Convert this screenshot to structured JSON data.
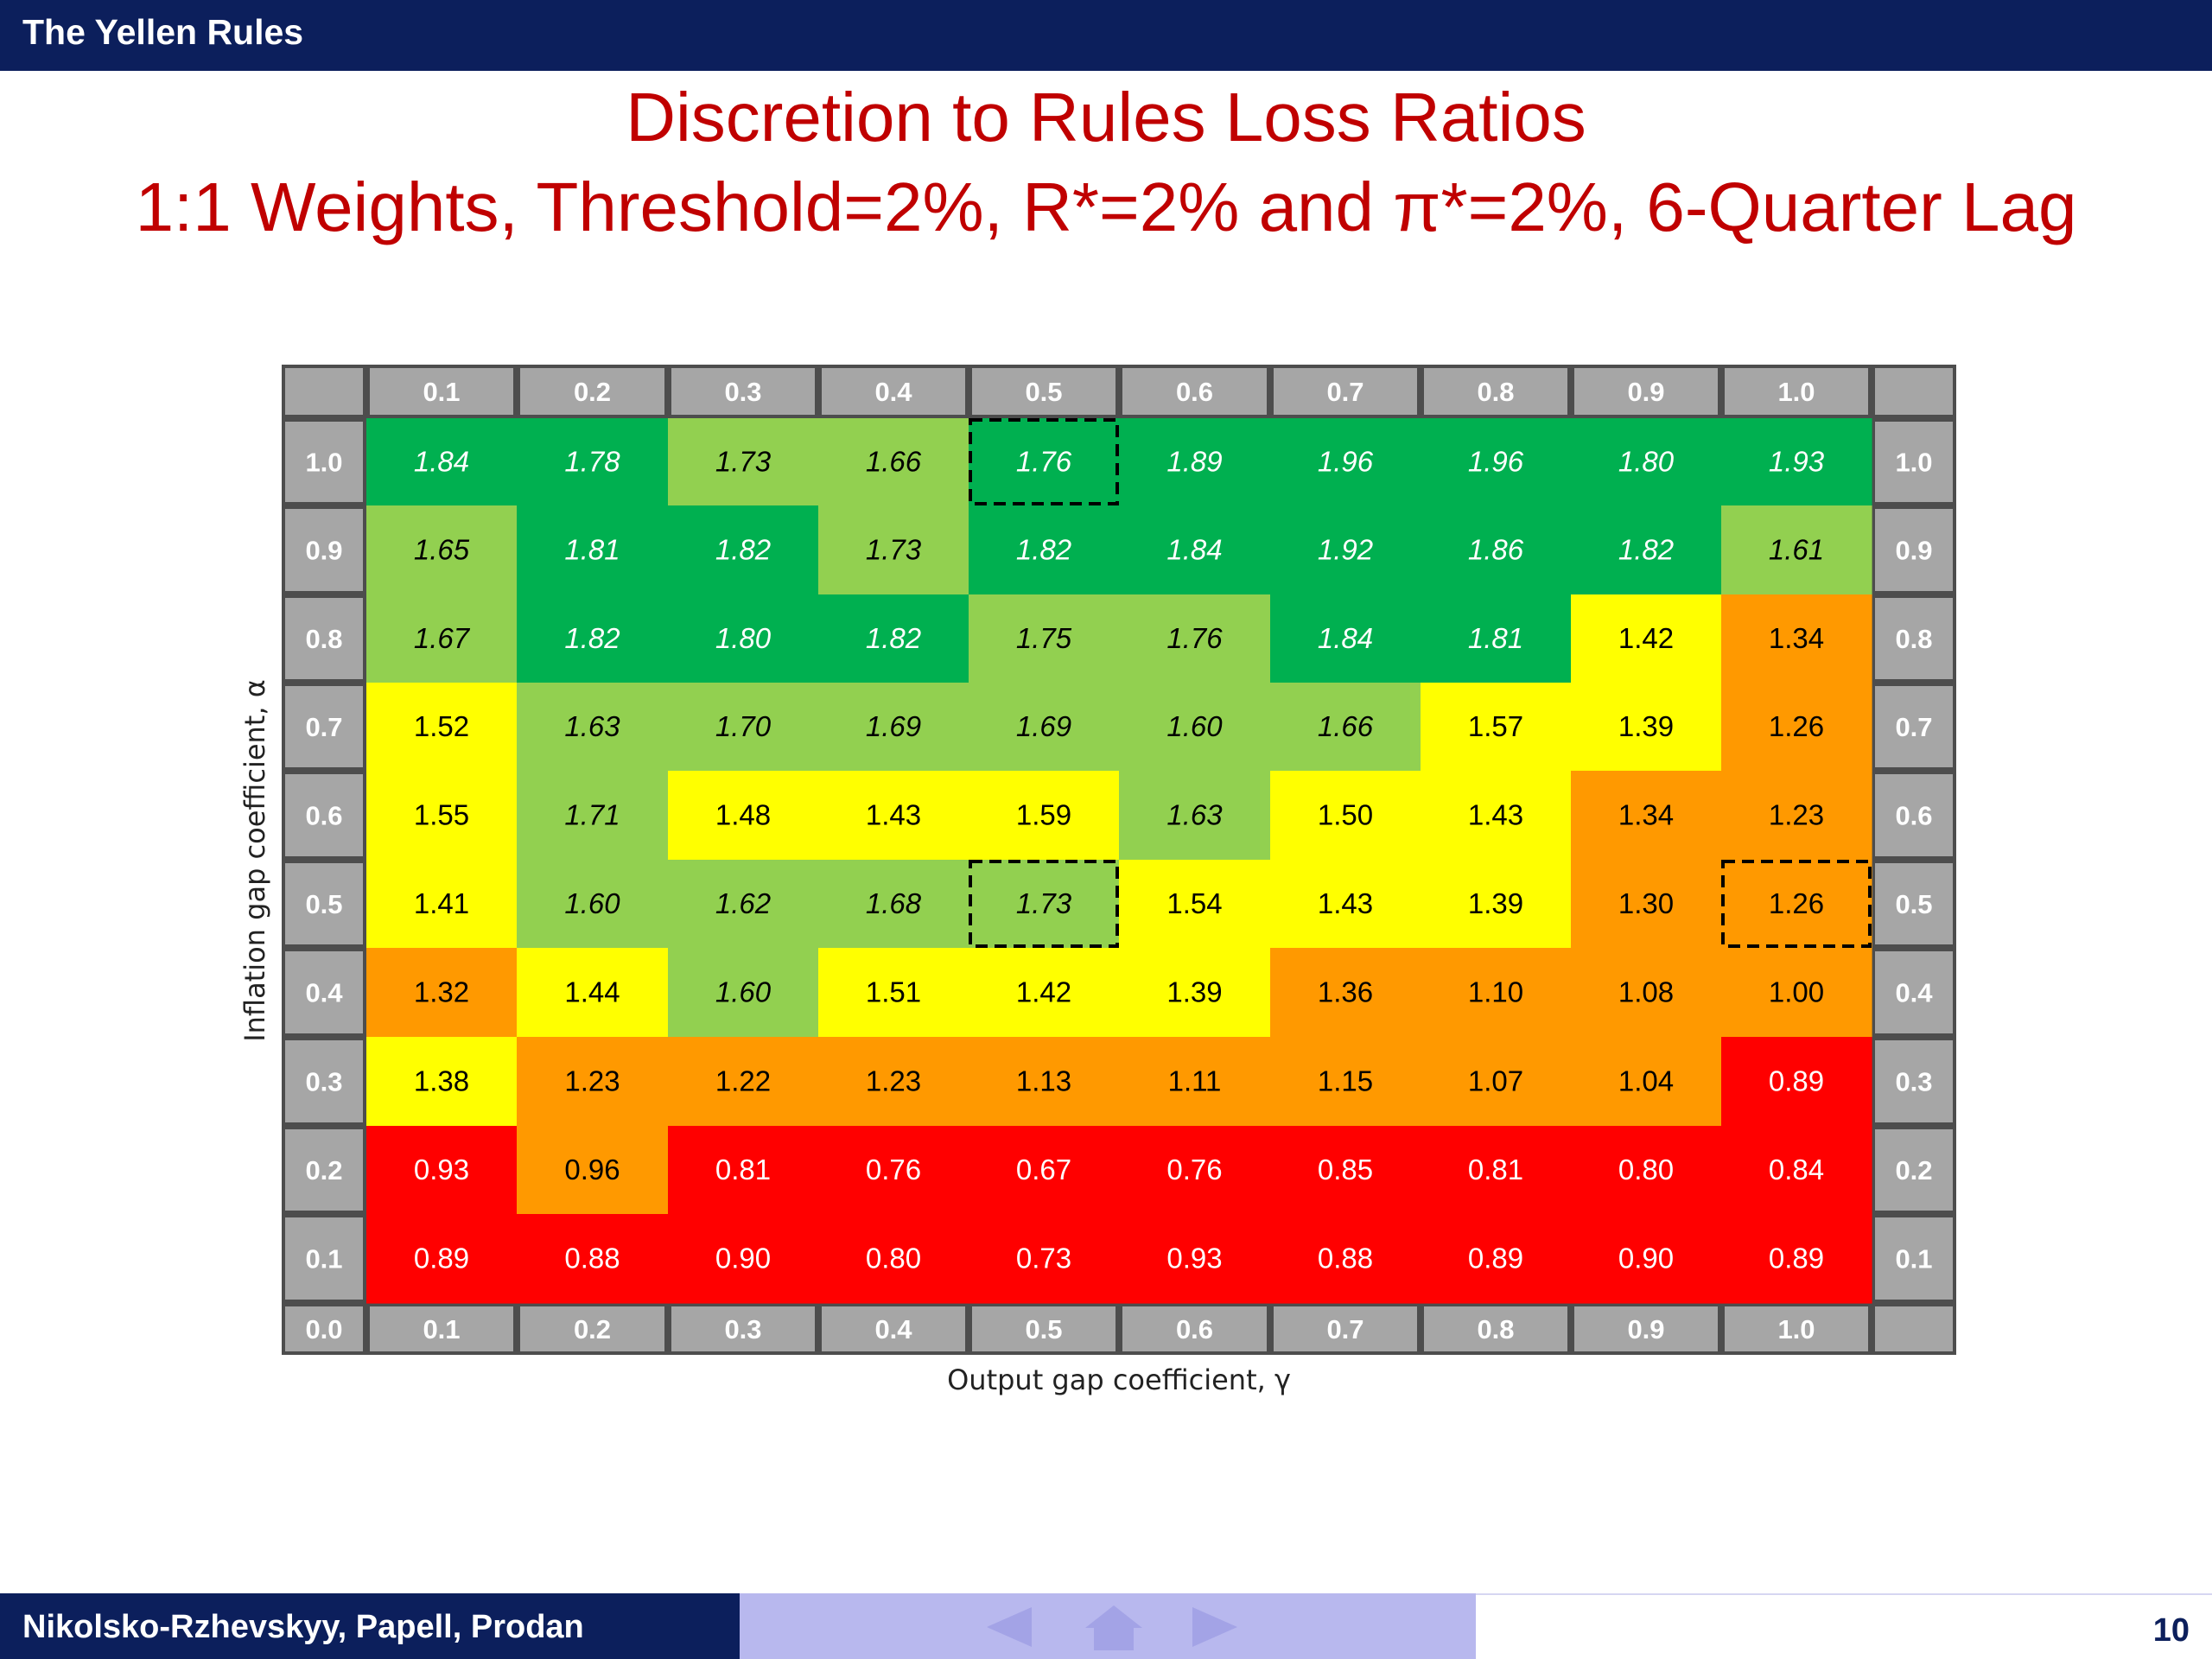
{
  "header": {
    "title": "The Yellen Rules"
  },
  "slide": {
    "title_line_1": "Discretion to Rules Loss Ratios",
    "title_line_2": "1:1 Weights, Threshold=2%, R*=2% and π*=2%, 6-Quarter Lag"
  },
  "footer": {
    "authors": "Nikolsko-Rzhevskyy, Papell, Prodan",
    "page_number": "10",
    "nav_icons": [
      "left-arrow-icon",
      "home-icon",
      "right-arrow-icon"
    ]
  },
  "chart_data": {
    "type": "heatmap",
    "xlabel": "Output gap coefficient, γ",
    "ylabel": "Inflation gap coefficient, α",
    "corner_label": "0.0",
    "x_categories": [
      "0.1",
      "0.2",
      "0.3",
      "0.4",
      "0.5",
      "0.6",
      "0.7",
      "0.8",
      "0.9",
      "1.0"
    ],
    "y_categories": [
      "1.0",
      "0.9",
      "0.8",
      "0.7",
      "0.6",
      "0.5",
      "0.4",
      "0.3",
      "0.2",
      "0.1"
    ],
    "values": [
      [
        "1.84",
        "1.78",
        "1.73",
        "1.66",
        "1.76",
        "1.89",
        "1.96",
        "1.96",
        "1.80",
        "1.93"
      ],
      [
        "1.65",
        "1.81",
        "1.82",
        "1.73",
        "1.82",
        "1.84",
        "1.92",
        "1.86",
        "1.82",
        "1.61"
      ],
      [
        "1.67",
        "1.82",
        "1.80",
        "1.82",
        "1.75",
        "1.76",
        "1.84",
        "1.81",
        "1.42",
        "1.34"
      ],
      [
        "1.52",
        "1.63",
        "1.70",
        "1.69",
        "1.69",
        "1.60",
        "1.66",
        "1.57",
        "1.39",
        "1.26"
      ],
      [
        "1.55",
        "1.71",
        "1.48",
        "1.43",
        "1.59",
        "1.63",
        "1.50",
        "1.43",
        "1.34",
        "1.23"
      ],
      [
        "1.41",
        "1.60",
        "1.62",
        "1.68",
        "1.73",
        "1.54",
        "1.43",
        "1.39",
        "1.30",
        "1.26"
      ],
      [
        "1.32",
        "1.44",
        "1.60",
        "1.51",
        "1.42",
        "1.39",
        "1.36",
        "1.10",
        "1.08",
        "1.00"
      ],
      [
        "1.38",
        "1.23",
        "1.22",
        "1.23",
        "1.13",
        "1.11",
        "1.15",
        "1.07",
        "1.04",
        "0.89"
      ],
      [
        "0.93",
        "0.96",
        "0.81",
        "0.76",
        "0.67",
        "0.76",
        "0.85",
        "0.81",
        "0.80",
        "0.84"
      ],
      [
        "0.89",
        "0.88",
        "0.90",
        "0.80",
        "0.73",
        "0.93",
        "0.88",
        "0.89",
        "0.90",
        "0.89"
      ]
    ],
    "color_classes": [
      [
        "D",
        "D",
        "L",
        "L",
        "D",
        "D",
        "D",
        "D",
        "D",
        "D"
      ],
      [
        "L",
        "D",
        "D",
        "L",
        "D",
        "D",
        "D",
        "D",
        "D",
        "L"
      ],
      [
        "L",
        "D",
        "D",
        "D",
        "L",
        "L",
        "D",
        "D",
        "Y",
        "O"
      ],
      [
        "Y",
        "L",
        "L",
        "L",
        "L",
        "L",
        "L",
        "Y",
        "Y",
        "O"
      ],
      [
        "Y",
        "L",
        "Y",
        "Y",
        "Y",
        "L",
        "Y",
        "Y",
        "O",
        "O"
      ],
      [
        "Y",
        "L",
        "L",
        "L",
        "L",
        "Y",
        "Y",
        "Y",
        "O",
        "O"
      ],
      [
        "O",
        "Y",
        "L",
        "Y",
        "Y",
        "Y",
        "O",
        "O",
        "O",
        "O"
      ],
      [
        "Y",
        "O",
        "O",
        "O",
        "O",
        "O",
        "O",
        "O",
        "O",
        "R"
      ],
      [
        "R",
        "O",
        "R",
        "R",
        "R",
        "R",
        "R",
        "R",
        "R",
        "R"
      ],
      [
        "R",
        "R",
        "R",
        "R",
        "R",
        "R",
        "R",
        "R",
        "R",
        "R"
      ]
    ],
    "colors": {
      "D": "#00b050",
      "L": "#92d050",
      "Y": "#ffff00",
      "O": "#ff9900",
      "R": "#ff0000",
      "header_gray": "#a6a6a6"
    },
    "highlighted_cells": [
      {
        "x": "0.5",
        "y": "1.0"
      },
      {
        "x": "0.5",
        "y": "0.5"
      },
      {
        "x": "1.0",
        "y": "0.5"
      }
    ]
  }
}
